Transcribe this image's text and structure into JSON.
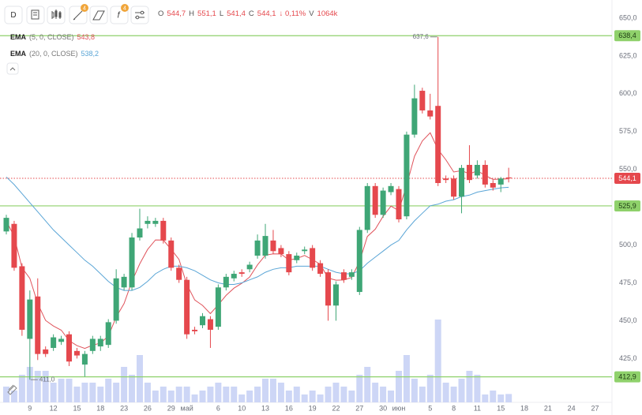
{
  "toolbar": {
    "interval": "D",
    "badges": [
      "4",
      "4"
    ]
  },
  "chart_data": {
    "type": "candlestick",
    "categories": [
      null,
      null,
      null,
      "9",
      null,
      null,
      "12",
      null,
      null,
      "15",
      null,
      null,
      "18",
      null,
      null,
      "23",
      null,
      null,
      "26",
      null,
      null,
      "29",
      null,
      "май",
      null,
      null,
      null,
      "6",
      null,
      null,
      "10",
      null,
      null,
      "13",
      null,
      null,
      "16",
      null,
      null,
      "19",
      null,
      null,
      "22",
      null,
      null,
      "27",
      null,
      null,
      "30",
      null,
      "июн",
      null,
      null,
      null,
      "5",
      null,
      null,
      "8",
      null,
      null,
      "11",
      null,
      null,
      "15",
      null,
      null,
      "18",
      null,
      null,
      "21",
      null,
      null,
      "24",
      null,
      null,
      "27"
    ],
    "open": [
      509,
      514,
      486,
      438,
      466,
      431,
      432,
      436,
      441,
      430,
      421,
      430,
      433,
      434,
      450,
      472,
      472,
      505,
      514,
      514,
      516,
      503,
      485,
      477,
      444,
      447,
      451,
      446,
      472,
      478,
      482,
      484,
      493,
      493,
      503,
      498,
      494,
      490,
      496,
      498,
      488,
      482,
      460,
      482,
      479,
      469,
      510,
      539,
      520,
      535,
      537,
      519,
      573,
      602,
      589,
      592,
      544,
      544,
      532,
      553,
      546,
      553,
      541,
      540,
      544.7,
      null,
      null,
      null,
      null,
      null,
      null,
      null,
      null,
      null,
      null,
      null
    ],
    "high": [
      520,
      516,
      488,
      470,
      478,
      433,
      441,
      440,
      443,
      432,
      430,
      440,
      440,
      451,
      484,
      481,
      508,
      524,
      519,
      518,
      518,
      505,
      487,
      479,
      446,
      455,
      453,
      474,
      481,
      483,
      484,
      489,
      507,
      514,
      510,
      500,
      496,
      495,
      499,
      500,
      490,
      484,
      476,
      484,
      484,
      512,
      541,
      541,
      538,
      541,
      539,
      575,
      606,
      604,
      600,
      637.6,
      546,
      546,
      553,
      566,
      556,
      556,
      543,
      545,
      551.1,
      null,
      null,
      null,
      null,
      null,
      null,
      null,
      null,
      null,
      null,
      null
    ],
    "low": [
      507,
      483,
      440,
      411,
      424,
      426,
      430,
      434,
      420,
      425,
      413,
      428,
      430,
      432,
      448,
      470,
      470,
      503,
      511,
      512,
      501,
      483,
      475,
      438,
      441,
      445,
      432,
      444,
      470,
      476,
      479,
      482,
      491,
      491,
      494,
      492,
      480,
      488,
      494,
      483,
      479,
      450,
      450,
      475,
      477,
      467,
      508,
      518,
      518,
      533,
      515,
      517,
      571,
      587,
      583,
      539,
      541,
      530,
      521,
      541,
      544,
      538,
      536,
      535,
      541.4,
      null,
      null,
      null,
      null,
      null,
      null,
      null,
      null,
      null,
      null,
      null
    ],
    "close": [
      518,
      485,
      444,
      464,
      428,
      428,
      439,
      438,
      423,
      427,
      428,
      438,
      438,
      449,
      478,
      479,
      505,
      511,
      516,
      516,
      503,
      485,
      477,
      441,
      443,
      453,
      444,
      472,
      479,
      481,
      481,
      487,
      503,
      506,
      496,
      494,
      482,
      493,
      497,
      485,
      481,
      460,
      474,
      477,
      482,
      510,
      539,
      520,
      536,
      539,
      517,
      573,
      597,
      589,
      585,
      541,
      543,
      532,
      551,
      543,
      553,
      540,
      538,
      544,
      544.1,
      null,
      null,
      null,
      null,
      null,
      null,
      null,
      null,
      null,
      null,
      null
    ],
    "up_color": "#3fa676",
    "down_color": "#e5484d",
    "overlays": [
      {
        "name": "EMA",
        "params": "(5, 0, CLOSE)",
        "last_label": "543,8",
        "color": "#e0545c",
        "values": [
          516,
          505.7,
          485,
          478,
          461.3,
          450.2,
          446.5,
          443.7,
          436.8,
          433.5,
          431.7,
          433.8,
          435.2,
          439.8,
          452.5,
          461.3,
          475.9,
          487.6,
          497.1,
          503.4,
          503.3,
          497.2,
          490.5,
          474,
          463.7,
          460.1,
          454.7,
          460.5,
          466.7,
          471.5,
          474.7,
          478.8,
          486.9,
          493.3,
          494.2,
          494.1,
          490.1,
          491.1,
          493.1,
          490.4,
          487.3,
          478.2,
          476.8,
          476.9,
          478.6,
          489.1,
          505.7,
          510.5,
          519,
          525.7,
          522.8,
          539.5,
          558.7,
          568.8,
          574.2,
          563.1,
          556.4,
          548.3,
          549.2,
          547.1,
          549.1,
          546.1,
          543.4,
          543.6,
          543.8,
          null,
          null,
          null,
          null,
          null,
          null,
          null,
          null,
          null,
          null,
          null
        ]
      },
      {
        "name": "EMA",
        "params": "(20, 0, CLOSE)",
        "last_label": "538,2",
        "color": "#5aa5d6",
        "values": [
          545,
          540,
          534,
          528,
          522,
          516,
          510,
          505,
          500,
          495,
          490,
          486,
          481,
          476,
          472,
          470,
          470,
          472,
          476,
          481,
          484,
          486,
          486,
          485,
          483,
          480,
          477,
          475,
          474,
          474,
          475,
          477,
          479,
          482,
          484,
          485,
          485,
          486,
          486,
          486,
          486,
          484,
          482,
          481,
          481,
          483,
          488,
          492,
          496,
          500,
          503,
          510,
          516,
          521,
          526,
          527,
          529,
          530,
          532,
          533,
          535,
          536,
          537,
          537.8,
          538.2,
          null,
          null,
          null,
          null,
          null,
          null,
          null,
          null,
          null,
          null,
          null
        ]
      }
    ],
    "volume": {
      "name": "V",
      "last_label": "1064k",
      "color": "#cdd6f6",
      "values": [
        2000,
        1500,
        3500,
        4500,
        4000,
        4000,
        2500,
        3000,
        3000,
        2000,
        2500,
        2500,
        2000,
        3000,
        2500,
        4500,
        3500,
        6000,
        2500,
        1500,
        2000,
        1500,
        2000,
        2000,
        1000,
        1500,
        2000,
        2500,
        2000,
        2000,
        1000,
        1500,
        2000,
        3000,
        3000,
        2500,
        1500,
        2000,
        1000,
        1500,
        1000,
        2000,
        2500,
        2000,
        1500,
        3500,
        4500,
        2500,
        2000,
        1500,
        4000,
        6000,
        3000,
        2000,
        3500,
        10500,
        2500,
        2000,
        3000,
        4000,
        3500,
        1000,
        1500,
        1000,
        1064,
        null,
        null,
        null,
        null,
        null,
        null,
        null,
        null,
        null,
        null,
        null
      ]
    },
    "ylim": [
      396,
      662
    ],
    "yticks": [
      {
        "value": 425,
        "label": "425,0"
      },
      {
        "value": 450,
        "label": "450,0"
      },
      {
        "value": 475,
        "label": "475,0"
      },
      {
        "value": 500,
        "label": "500,0"
      },
      {
        "value": 550,
        "label": "550,0"
      },
      {
        "value": 575,
        "label": "575,0"
      },
      {
        "value": 600,
        "label": "600,0"
      },
      {
        "value": 625,
        "label": "625,0"
      },
      {
        "value": 650,
        "label": "650,0"
      }
    ],
    "levels": [
      {
        "value": 638.4,
        "label": "638,4",
        "color": "#8fd16b"
      },
      {
        "value": 525.9,
        "label": "525,9",
        "color": "#8fd16b"
      },
      {
        "value": 412.9,
        "label": "412,9",
        "color": "#8fd16b"
      }
    ],
    "last_price": {
      "value": 544.1,
      "label": "544,1",
      "color": "#e5484d"
    },
    "annotations": [
      {
        "value": 637.6,
        "label": "637,6"
      },
      {
        "value": 411,
        "label": "411,0"
      }
    ],
    "quote": {
      "items": [
        {
          "key": "O",
          "text": "544,7"
        },
        {
          "key": "H",
          "text": "551,1"
        },
        {
          "key": "L",
          "text": "541,4"
        },
        {
          "key": "C",
          "text": "544,1"
        }
      ],
      "change": "↓ 0,11%"
    }
  }
}
